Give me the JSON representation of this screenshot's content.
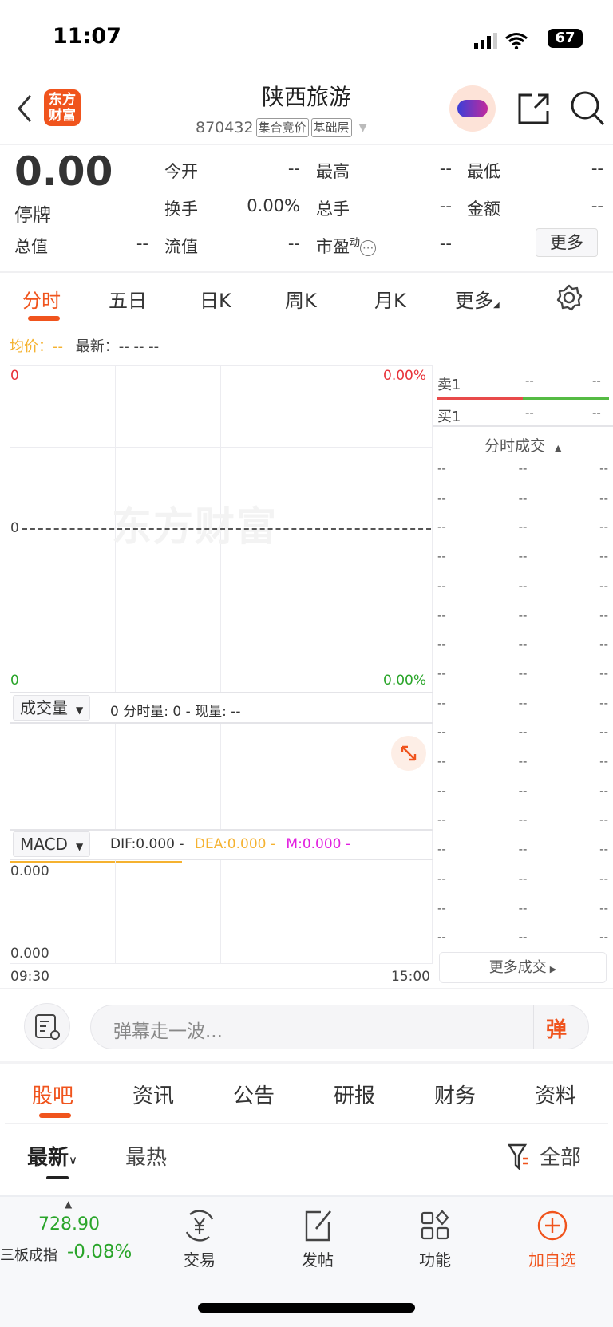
{
  "status": {
    "time": "11:07",
    "battery": "67"
  },
  "header": {
    "title": "陕西旅游",
    "code": "870432",
    "tags": [
      "集合竞价",
      "基础层"
    ],
    "logo": "东方财富"
  },
  "quote": {
    "price": "0.00",
    "state": "停牌",
    "fields": [
      {
        "label": "今开",
        "value": "--"
      },
      {
        "label": "最高",
        "value": "--"
      },
      {
        "label": "最低",
        "value": "--"
      },
      {
        "label": "换手",
        "value": "0.00%"
      },
      {
        "label": "总手",
        "value": "--"
      },
      {
        "label": "金额",
        "value": "--"
      },
      {
        "label": "总值",
        "value": "--"
      },
      {
        "label": "流值",
        "value": "--"
      },
      {
        "label": "市盈",
        "value": "--",
        "sup": "动"
      }
    ],
    "more": "更多"
  },
  "chart_tabs": [
    "分时",
    "五日",
    "日K",
    "周K",
    "月K",
    "更多"
  ],
  "info": {
    "avg_label": "均价：",
    "avg_val": "--",
    "latest_label": "最新：",
    "latest_vals": "--  --  --"
  },
  "chart": {
    "top_left": "0",
    "top_right": "0.00%",
    "mid": "0",
    "bottom_left": "0",
    "bottom_right": "0.00%",
    "watermark": "东方财富",
    "time_start": "09:30",
    "time_end": "15:00"
  },
  "volume": {
    "select": "成交量",
    "text": "0 分时量: 0 - 现量: --"
  },
  "macd": {
    "select": "MACD",
    "dif": "DIF:0.000 -",
    "dea": "DEA:0.000 -",
    "m": "M:0.000 -",
    "top": "0.000",
    "bottom": "0.000"
  },
  "orderbook": {
    "sell": {
      "label": "卖1",
      "price": "--",
      "vol": "--"
    },
    "buy": {
      "label": "买1",
      "price": "--",
      "vol": "--"
    }
  },
  "trades": {
    "title": "分时成交",
    "rows": [
      [
        "--",
        "--",
        "--"
      ],
      [
        "--",
        "--",
        "--"
      ],
      [
        "--",
        "--",
        "--"
      ],
      [
        "--",
        "--",
        "--"
      ],
      [
        "--",
        "--",
        "--"
      ],
      [
        "--",
        "--",
        "--"
      ],
      [
        "--",
        "--",
        "--"
      ],
      [
        "--",
        "--",
        "--"
      ],
      [
        "--",
        "--",
        "--"
      ],
      [
        "--",
        "--",
        "--"
      ],
      [
        "--",
        "--",
        "--"
      ],
      [
        "--",
        "--",
        "--"
      ],
      [
        "--",
        "--",
        "--"
      ],
      [
        "--",
        "--",
        "--"
      ],
      [
        "--",
        "--",
        "--"
      ],
      [
        "--",
        "--",
        "--"
      ],
      [
        "--",
        "--",
        "--"
      ]
    ],
    "more": "更多成交"
  },
  "danmu": {
    "placeholder": "弹幕走一波...",
    "send": "弹"
  },
  "news_tabs": [
    "股吧",
    "资讯",
    "公告",
    "研报",
    "财务",
    "资料"
  ],
  "sort": {
    "latest": "最新",
    "hot": "最热",
    "filter": "全部"
  },
  "bottom": {
    "index_value": "728.90",
    "index_name": "三板成指",
    "index_change": "-0.08%",
    "items": [
      "交易",
      "发帖",
      "功能",
      "加自选"
    ]
  },
  "colors": {
    "accent": "#f0541d",
    "up": "#e8333a",
    "down": "#2aa52a",
    "avg": "#f5b230",
    "magenta": "#e21ee0"
  }
}
